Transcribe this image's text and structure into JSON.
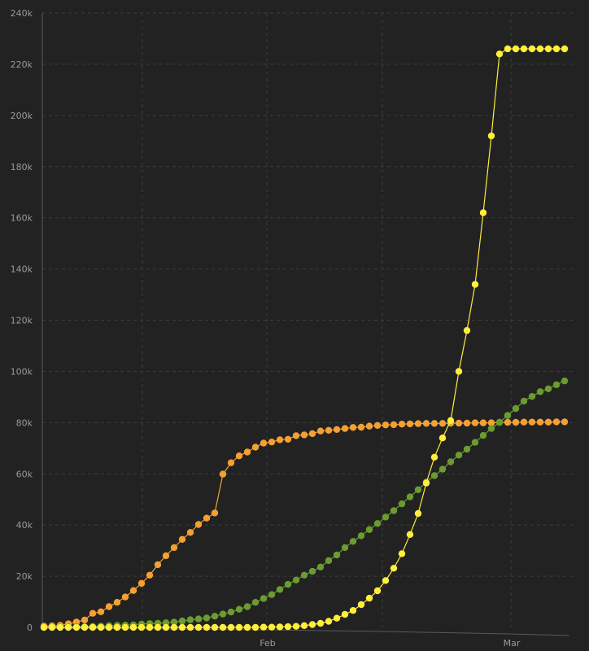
{
  "chart_data": {
    "type": "line",
    "title": "",
    "xlabel": "",
    "ylabel": "",
    "ylim": [
      0,
      240000
    ],
    "y_ticks": [
      0,
      20000,
      40000,
      60000,
      80000,
      100000,
      120000,
      140000,
      160000,
      180000,
      200000,
      220000,
      240000
    ],
    "y_tick_labels": [
      "0",
      "20k",
      "40k",
      "60k",
      "80k",
      "100k",
      "120k",
      "140k",
      "160k",
      "180k",
      "200k",
      "220k",
      "240k"
    ],
    "x_tick_labels": [
      "Feb",
      "Mar"
    ],
    "grid": true,
    "legend": "none",
    "x": [
      "2020-01-22",
      "2020-01-23",
      "2020-01-24",
      "2020-01-25",
      "2020-01-26",
      "2020-01-27",
      "2020-01-28",
      "2020-01-29",
      "2020-01-30",
      "2020-01-31",
      "2020-02-01",
      "2020-02-02",
      "2020-02-03",
      "2020-02-04",
      "2020-02-05",
      "2020-02-06",
      "2020-02-07",
      "2020-02-08",
      "2020-02-09",
      "2020-02-10",
      "2020-02-11",
      "2020-02-12",
      "2020-02-13",
      "2020-02-14",
      "2020-02-15",
      "2020-02-16",
      "2020-02-17",
      "2020-02-18",
      "2020-02-19",
      "2020-02-20",
      "2020-02-21",
      "2020-02-22",
      "2020-02-23",
      "2020-02-24",
      "2020-02-25",
      "2020-02-26",
      "2020-02-27",
      "2020-02-28",
      "2020-02-29",
      "2020-03-01",
      "2020-03-02",
      "2020-03-03",
      "2020-03-04",
      "2020-03-05",
      "2020-03-06",
      "2020-03-07",
      "2020-03-08",
      "2020-03-09",
      "2020-03-10",
      "2020-03-11",
      "2020-03-12",
      "2020-03-13",
      "2020-03-14",
      "2020-03-15",
      "2020-03-16",
      "2020-03-17",
      "2020-03-18",
      "2020-03-19",
      "2020-03-20",
      "2020-03-21",
      "2020-03-22",
      "2020-03-23",
      "2020-03-24",
      "2020-03-25",
      "2020-03-26"
    ],
    "series": [
      {
        "color": "#f5a033",
        "values": [
          500,
          600,
          800,
          1400,
          2100,
          2900,
          5500,
          6100,
          8100,
          9800,
          11900,
          14400,
          17200,
          20400,
          24500,
          28000,
          31200,
          34400,
          37100,
          40200,
          42700,
          44700,
          59900,
          64300,
          67000,
          68500,
          70400,
          72000,
          72400,
          73300,
          73500,
          74900,
          75200,
          75700,
          76700,
          77000,
          77300,
          77700,
          78100,
          78200,
          78600,
          78900,
          79100,
          79200,
          79400,
          79500,
          79600,
          79700,
          79700,
          79700,
          79800,
          79800,
          79800,
          79900,
          79900,
          79900,
          80100,
          80100,
          80100,
          80200,
          80200,
          80200,
          80200,
          80300,
          80300
        ]
      },
      {
        "color": "#6b9c30",
        "values": [
          0,
          100,
          200,
          200,
          300,
          300,
          400,
          500,
          700,
          800,
          900,
          1000,
          1300,
          1500,
          1600,
          1800,
          2100,
          2500,
          3000,
          3300,
          3700,
          4400,
          5200,
          6000,
          7100,
          8100,
          9800,
          11300,
          12800,
          14800,
          16800,
          18500,
          20400,
          21900,
          23600,
          26100,
          28300,
          31200,
          33600,
          35800,
          38200,
          40600,
          43100,
          45600,
          48300,
          51000,
          53800,
          56800,
          59300,
          61800,
          64700,
          67300,
          69600,
          72300,
          75000,
          77700,
          80100,
          82800,
          85500,
          88400,
          90200,
          92100,
          93200,
          94800,
          96300
        ]
      },
      {
        "color": "#ffee3a",
        "values": [
          0,
          0,
          0,
          0,
          0,
          0,
          0,
          0,
          0,
          0,
          0,
          0,
          0,
          0,
          0,
          0,
          0,
          0,
          0,
          0,
          0,
          0,
          0,
          0,
          0,
          0,
          0,
          100,
          100,
          200,
          300,
          400,
          700,
          1100,
          1600,
          2400,
          3600,
          5100,
          6600,
          8900,
          11400,
          14300,
          18300,
          23100,
          28800,
          36300,
          44500,
          56400,
          66500,
          74000,
          80800,
          100000,
          116000,
          134000,
          162000,
          192000,
          224000,
          226000,
          226000,
          226000,
          226000,
          226000,
          226000,
          226000,
          226000
        ]
      }
    ]
  }
}
